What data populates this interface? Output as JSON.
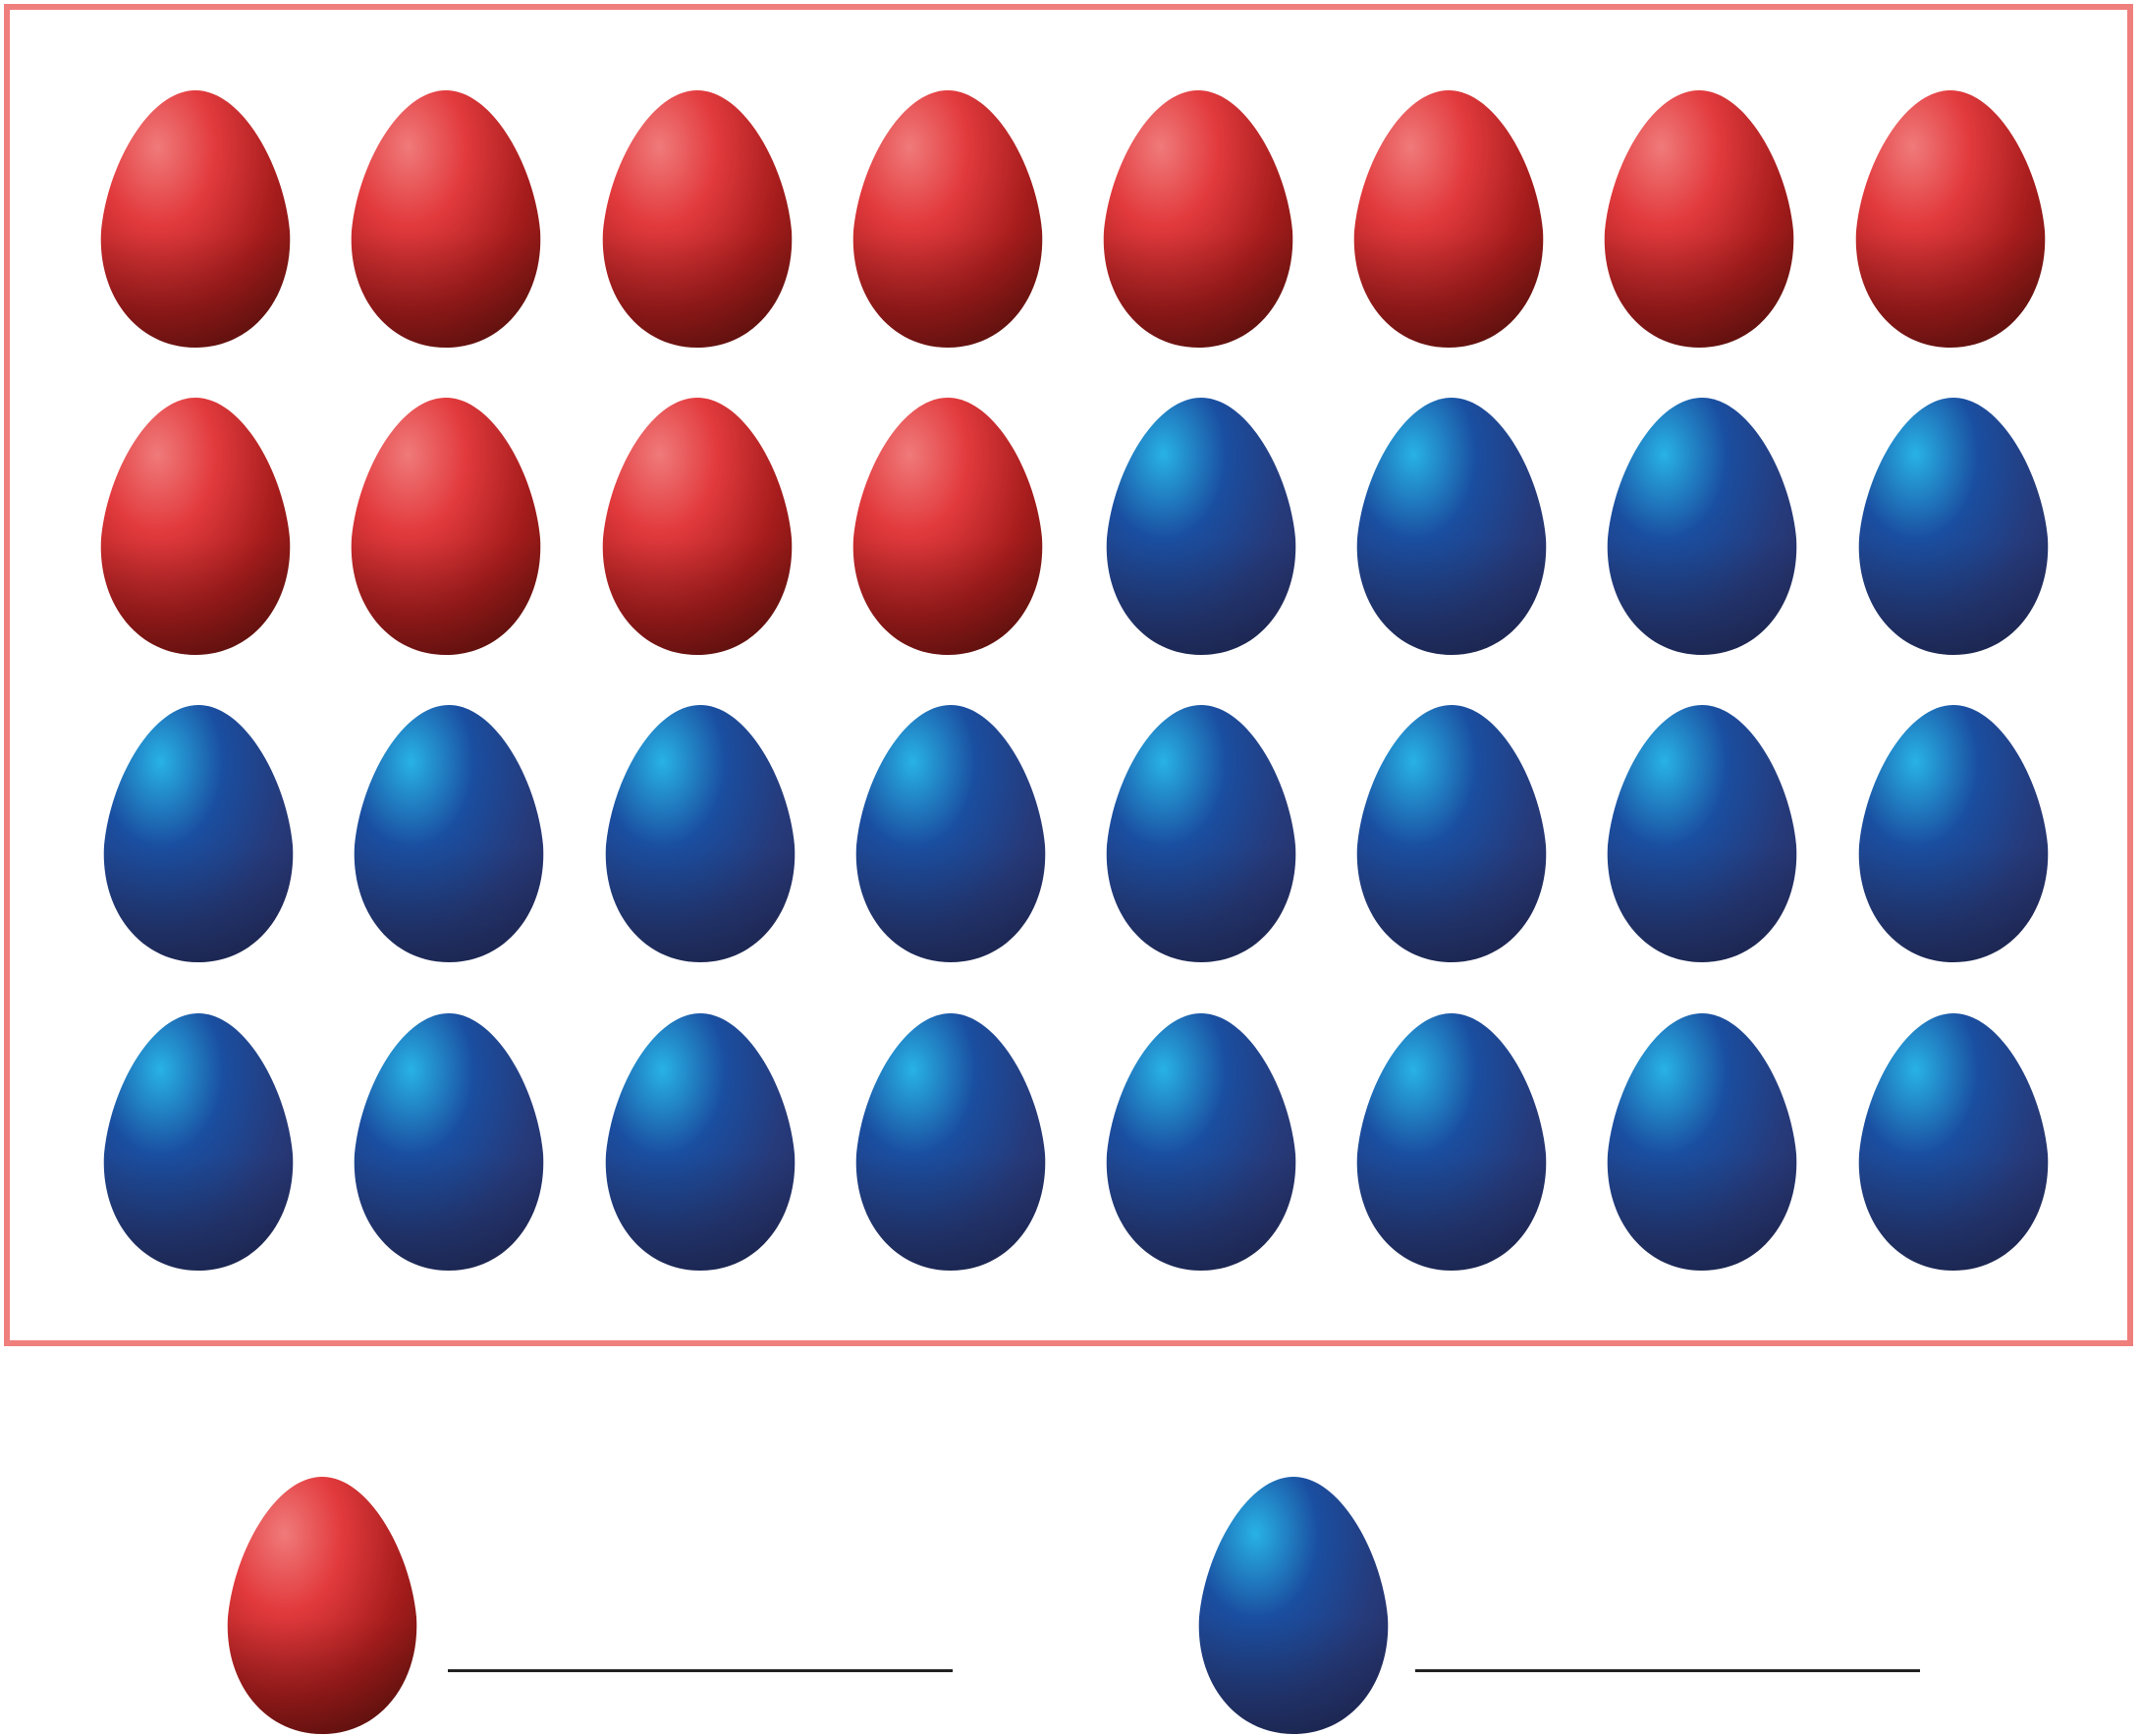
{
  "colors": {
    "frame": "#ef7f7d",
    "red_egg": {
      "light": "#f07a7a",
      "mid": "#e23a3d",
      "dark": "#6d140f"
    },
    "blue_egg": {
      "light": "#28b2e6",
      "mid": "#1a4ea0",
      "dark": "#252e63"
    },
    "answer_line": "#222222"
  },
  "grid": {
    "rows": 4,
    "columns": 8,
    "eggs": [
      [
        "red",
        "red",
        "red",
        "red",
        "red",
        "red",
        "red",
        "red"
      ],
      [
        "red",
        "red",
        "red",
        "red",
        "blue",
        "blue",
        "blue",
        "blue"
      ],
      [
        "blue",
        "blue",
        "blue",
        "blue",
        "blue",
        "blue",
        "blue",
        "blue"
      ],
      [
        "blue",
        "blue",
        "blue",
        "blue",
        "blue",
        "blue",
        "blue",
        "blue"
      ]
    ]
  },
  "legend": [
    {
      "egg_color": "red",
      "answer": ""
    },
    {
      "egg_color": "blue",
      "answer": ""
    }
  ]
}
